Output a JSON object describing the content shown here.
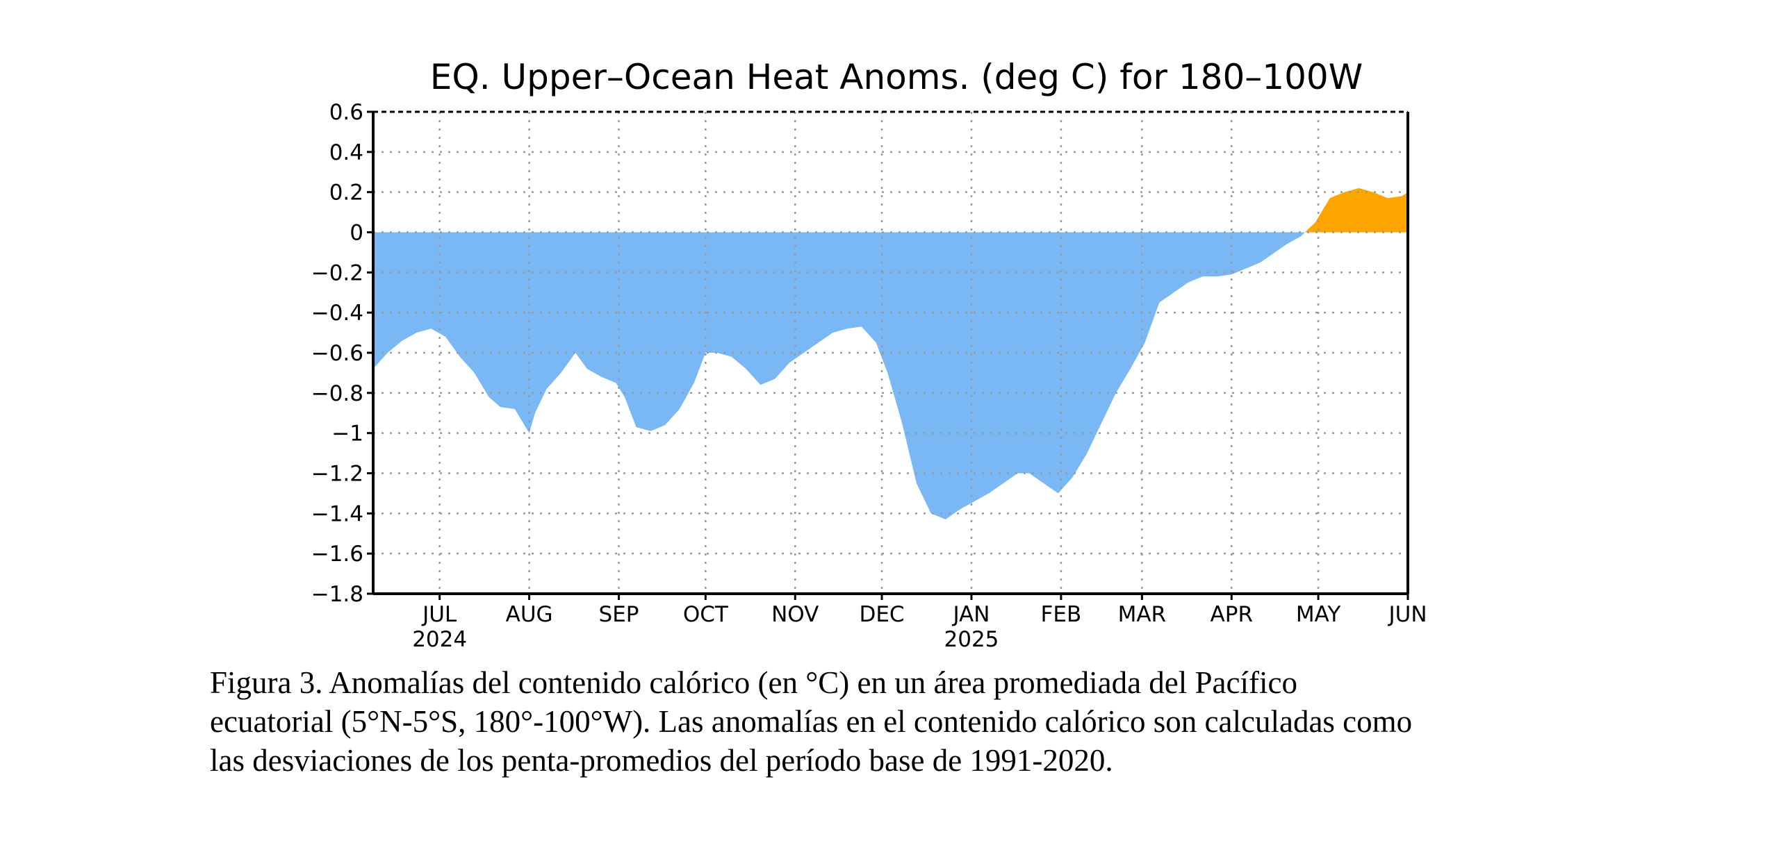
{
  "chart_data": {
    "type": "area",
    "title": "EQ. Upper–Ocean Heat Anoms. (deg C) for 180–100W",
    "xlabel": "",
    "ylabel": "",
    "ylim": [
      -1.8,
      0.6
    ],
    "yticks": [
      0.6,
      0.4,
      0.2,
      0,
      -0.2,
      -0.4,
      -0.6,
      -0.8,
      -1,
      -1.2,
      -1.4,
      -1.6,
      -1.8
    ],
    "ytick_labels": [
      "0.6",
      "0.4",
      "0.2",
      "0",
      "−0.2",
      "−0.4",
      "−0.6",
      "−0.8",
      "−1",
      "−1.2",
      "−1.4",
      "−1.6",
      "−1.8"
    ],
    "xlim": [
      "2024-06-08",
      "2025-06-01"
    ],
    "xticks": [
      {
        "date": "2024-07-01",
        "label": "JUL",
        "year": "2024"
      },
      {
        "date": "2024-08-01",
        "label": "AUG",
        "year": ""
      },
      {
        "date": "2024-09-01",
        "label": "SEP",
        "year": ""
      },
      {
        "date": "2024-10-01",
        "label": "OCT",
        "year": ""
      },
      {
        "date": "2024-11-01",
        "label": "NOV",
        "year": ""
      },
      {
        "date": "2024-12-01",
        "label": "DEC",
        "year": ""
      },
      {
        "date": "2025-01-01",
        "label": "JAN",
        "year": "2025"
      },
      {
        "date": "2025-02-01",
        "label": "FEB",
        "year": ""
      },
      {
        "date": "2025-03-01",
        "label": "MAR",
        "year": ""
      },
      {
        "date": "2025-04-01",
        "label": "APR",
        "year": ""
      },
      {
        "date": "2025-05-01",
        "label": "MAY",
        "year": ""
      },
      {
        "date": "2025-06-01",
        "label": "JUN",
        "year": ""
      }
    ],
    "grid": true,
    "positive_color": "#ffa500",
    "negative_color": "#7ab7f5",
    "series": [
      {
        "x": [
          "2024-06-08",
          "2024-06-13",
          "2024-06-18",
          "2024-06-23",
          "2024-06-28",
          "2024-07-03",
          "2024-07-08",
          "2024-07-13",
          "2024-07-18",
          "2024-07-22",
          "2024-07-27",
          "2024-08-01",
          "2024-08-03",
          "2024-08-07",
          "2024-08-12",
          "2024-08-17",
          "2024-08-21",
          "2024-08-26",
          "2024-08-31",
          "2024-09-03",
          "2024-09-07",
          "2024-09-12",
          "2024-09-17",
          "2024-09-22",
          "2024-09-27",
          "2024-10-01",
          "2024-10-05",
          "2024-10-10",
          "2024-10-15",
          "2024-10-20",
          "2024-10-25",
          "2024-10-30",
          "2024-11-04",
          "2024-11-09",
          "2024-11-14",
          "2024-11-19",
          "2024-11-24",
          "2024-11-29",
          "2024-12-03",
          "2024-12-08",
          "2024-12-13",
          "2024-12-18",
          "2024-12-23",
          "2024-12-28",
          "2025-01-02",
          "2025-01-07",
          "2025-01-12",
          "2025-01-17",
          "2025-01-21",
          "2025-01-26",
          "2025-01-31",
          "2025-02-05",
          "2025-02-10",
          "2025-02-15",
          "2025-02-20",
          "2025-02-25",
          "2025-03-02",
          "2025-03-07",
          "2025-03-12",
          "2025-03-17",
          "2025-03-22",
          "2025-03-27",
          "2025-04-01",
          "2025-04-06",
          "2025-04-11",
          "2025-04-16",
          "2025-04-20",
          "2025-04-25",
          "2025-04-30",
          "2025-05-05",
          "2025-05-10",
          "2025-05-15",
          "2025-05-20",
          "2025-05-25",
          "2025-05-30",
          "2025-06-01"
        ],
        "values": [
          -0.68,
          -0.6,
          -0.54,
          -0.5,
          -0.48,
          -0.52,
          -0.62,
          -0.7,
          -0.82,
          -0.87,
          -0.88,
          -1.0,
          -0.9,
          -0.78,
          -0.7,
          -0.6,
          -0.68,
          -0.72,
          -0.75,
          -0.82,
          -0.97,
          -0.99,
          -0.96,
          -0.88,
          -0.75,
          -0.6,
          -0.6,
          -0.62,
          -0.68,
          -0.76,
          -0.73,
          -0.65,
          -0.6,
          -0.55,
          -0.5,
          -0.48,
          -0.47,
          -0.55,
          -0.7,
          -0.95,
          -1.25,
          -1.4,
          -1.43,
          -1.38,
          -1.34,
          -1.3,
          -1.25,
          -1.2,
          -1.2,
          -1.25,
          -1.3,
          -1.22,
          -1.1,
          -0.95,
          -0.8,
          -0.68,
          -0.55,
          -0.35,
          -0.3,
          -0.25,
          -0.22,
          -0.22,
          -0.21,
          -0.18,
          -0.15,
          -0.1,
          -0.06,
          -0.02,
          0.05,
          0.17,
          0.2,
          0.22,
          0.2,
          0.17,
          0.18,
          0.2
        ]
      }
    ]
  },
  "caption": {
    "line1": "Figura 3. Anomalías del contenido calórico (en °C) en un área promediada del Pacífico",
    "line2": "ecuatorial (5°N-5°S, 180°-100°W). Las anomalías en el contenido calórico son calculadas como",
    "line3": "las desviaciones de los penta-promedios del período base de 1991-2020."
  }
}
